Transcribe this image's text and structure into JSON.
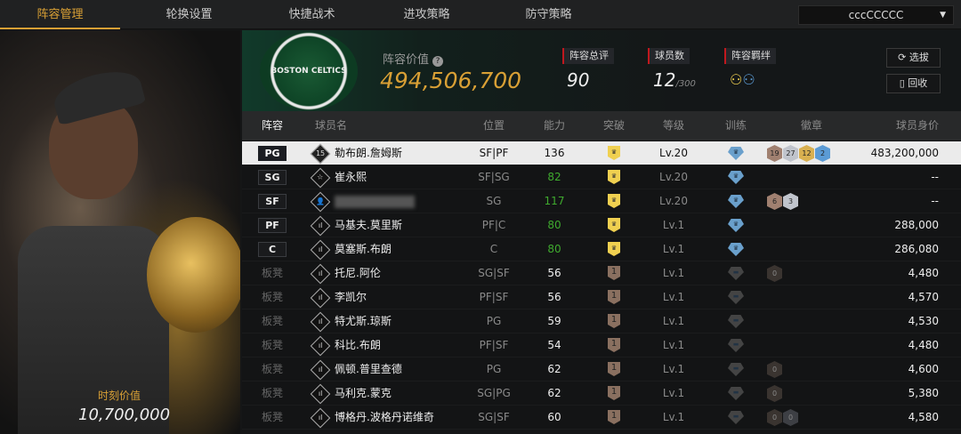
{
  "tabs": [
    "阵容管理",
    "轮换设置",
    "快捷战术",
    "进攻策略",
    "防守策略"
  ],
  "active_tab": 0,
  "team_select": {
    "value": "cccCCCCC"
  },
  "left_panel": {
    "label": "时刻价值",
    "value": "10,700,000"
  },
  "header": {
    "logo_text": "BOSTON CELTICS",
    "value_label": "阵容价值",
    "value": "494,506,700",
    "overall_label": "阵容总评",
    "overall": "90",
    "players_label": "球员数",
    "players": "12",
    "players_max": "/300",
    "bond_label": "阵容羁绊",
    "select_button": "选拔",
    "recycle_button": "回收"
  },
  "columns": [
    "阵容",
    "球员名",
    "位置",
    "能力",
    "突破",
    "等级",
    "训练",
    "徽章",
    "球员身价"
  ],
  "rows": [
    {
      "slot": "PG",
      "icon": "15",
      "name": "勒布朗.詹姆斯",
      "pos": "SF|PF",
      "ability": "136",
      "break": "crown",
      "level": "Lv.20",
      "train": "blue",
      "badges": [
        [
          "19",
          "hb"
        ],
        [
          "27",
          "hs"
        ],
        [
          "12",
          "hg"
        ],
        [
          "2",
          "hl"
        ]
      ],
      "value": "483,200,000",
      "selected": true
    },
    {
      "slot": "SG",
      "icon": "☆",
      "name": "崔永熙",
      "pos": "SF|SG",
      "ability": "82",
      "break": "crown",
      "level": "Lv.20",
      "train": "blue",
      "badges": [],
      "value": "--"
    },
    {
      "slot": "SF",
      "icon": "👤",
      "name": "",
      "pos": "SG",
      "ability": "117",
      "break": "crown",
      "level": "Lv.20",
      "train": "blue",
      "badges": [
        [
          "6",
          "hb"
        ],
        [
          "3",
          "hs"
        ]
      ],
      "value": "--"
    },
    {
      "slot": "PF",
      "icon": "ıl",
      "name": "马基夫.莫里斯",
      "pos": "PF|C",
      "ability": "80",
      "break": "crown",
      "level": "Lv.1",
      "train": "blue",
      "badges": [],
      "value": "288,000"
    },
    {
      "slot": "C",
      "icon": "ıl",
      "name": "莫塞斯.布朗",
      "pos": "C",
      "ability": "80",
      "break": "crown",
      "level": "Lv.1",
      "train": "blue",
      "badges": [],
      "value": "286,080"
    },
    {
      "slot": "板凳",
      "icon": "ıl",
      "name": "托尼.阿伦",
      "pos": "SG|SF",
      "ability": "56",
      "break": "1",
      "level": "Lv.1",
      "train": "gray",
      "badges": [
        [
          "0",
          "hd"
        ]
      ],
      "value": "4,480"
    },
    {
      "slot": "板凳",
      "icon": "ıl",
      "name": "李凯尔",
      "pos": "PF|SF",
      "ability": "56",
      "break": "1",
      "level": "Lv.1",
      "train": "gray",
      "badges": [],
      "value": "4,570"
    },
    {
      "slot": "板凳",
      "icon": "ıl",
      "name": "特尤斯.琼斯",
      "pos": "PG",
      "ability": "59",
      "break": "1",
      "level": "Lv.1",
      "train": "gray",
      "badges": [],
      "value": "4,530"
    },
    {
      "slot": "板凳",
      "icon": "ıl",
      "name": "科比.布朗",
      "pos": "PF|SF",
      "ability": "54",
      "break": "1",
      "level": "Lv.1",
      "train": "gray",
      "badges": [],
      "value": "4,480"
    },
    {
      "slot": "板凳",
      "icon": "ıl",
      "name": "佩顿.普里查德",
      "pos": "PG",
      "ability": "62",
      "break": "1",
      "level": "Lv.1",
      "train": "gray",
      "badges": [
        [
          "0",
          "hd"
        ]
      ],
      "value": "4,600"
    },
    {
      "slot": "板凳",
      "icon": "ıl",
      "name": "马利克.蒙克",
      "pos": "SG|PG",
      "ability": "62",
      "break": "1",
      "level": "Lv.1",
      "train": "gray",
      "badges": [
        [
          "0",
          "hd"
        ]
      ],
      "value": "5,380"
    },
    {
      "slot": "板凳",
      "icon": "ıl",
      "name": "博格丹.波格丹诺维奇",
      "pos": "SG|SF",
      "ability": "60",
      "break": "1",
      "level": "Lv.1",
      "train": "gray",
      "badges": [
        [
          "0",
          "hd"
        ],
        [
          "0",
          "hds"
        ]
      ],
      "value": "4,580"
    }
  ],
  "colors": {
    "accent": "#d9a035",
    "ability_green": "#3faa2e",
    "stat_marker": "#c0181e"
  }
}
